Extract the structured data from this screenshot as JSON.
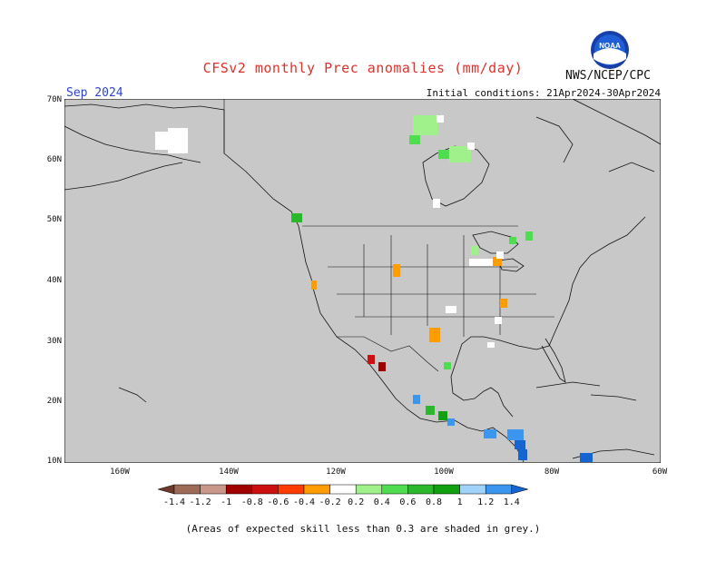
{
  "header": {
    "title": "CFSv2 monthly Prec anomalies (mm/day)",
    "agency": "NWS/NCEP/CPC",
    "logo_text": "NOAA",
    "month": "Sep 2024",
    "initial_conditions": "Initial conditions: 21Apr2024-30Apr2024"
  },
  "map": {
    "lat_labels": [
      "70N",
      "60N",
      "50N",
      "40N",
      "30N",
      "20N",
      "10N"
    ],
    "lon_labels": [
      "160W",
      "140W",
      "120W",
      "100W",
      "80W",
      "60W"
    ],
    "background": "#c8c8c8"
  },
  "colorbar": {
    "labels": [
      "-1.4",
      "-1.2",
      "-1",
      "-0.8",
      "-0.6",
      "-0.4",
      "-0.2",
      "0.2",
      "0.4",
      "0.6",
      "0.8",
      "1",
      "1.2",
      "1.4"
    ],
    "colors": [
      "#6b3a2a",
      "#9e6a58",
      "#c9988a",
      "#a00000",
      "#cc1010",
      "#ff3c00",
      "#ff9c00",
      "#ffffff",
      "#a0f08c",
      "#50dc50",
      "#2cb82c",
      "#10a010",
      "#a0d2fa",
      "#3c96f0",
      "#1464d2"
    ]
  },
  "footnote": "(Areas of expected skill less than 0.3 are shaded in grey.)"
}
